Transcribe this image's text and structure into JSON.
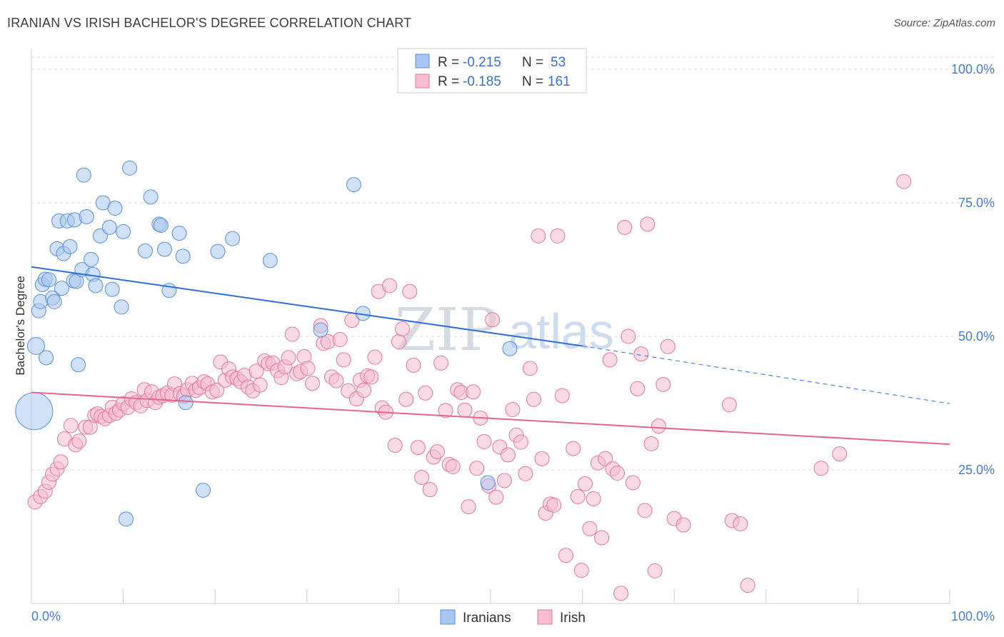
{
  "title": "IRANIAN VS IRISH BACHELOR'S DEGREE CORRELATION CHART",
  "source": "Source: ZipAtlas.com",
  "watermark": {
    "zip": "ZIP",
    "atlas": "atlas"
  },
  "colors": {
    "iranians_fill": "#a9c6f0",
    "iranians_stroke": "#5b8fd8",
    "iranians_line": "#2f6fd6",
    "irish_fill": "#f6bcd0",
    "irish_stroke": "#e3789e",
    "irish_line": "#e2668f",
    "tick_label": "#4a7bd0",
    "grid": "#dcdcdc"
  },
  "legend": {
    "rows": [
      {
        "r_label": "R = ",
        "r_value": "-0.215",
        "n_label": "N = ",
        "n_value": "53"
      },
      {
        "r_label": "R = ",
        "r_value": "-0.185",
        "n_label": "N = ",
        "n_value": "161"
      }
    ]
  },
  "bottom_legend": [
    "Iranians",
    "Irish"
  ],
  "chart_data": {
    "type": "scatter",
    "title": "IRANIAN VS IRISH BACHELOR'S DEGREE CORRELATION CHART",
    "xlabel": "",
    "ylabel": "Bachelor's Degree",
    "xlim": [
      0,
      100
    ],
    "ylim": [
      0,
      100
    ],
    "x_tick_labels": {
      "left": "0.0%",
      "right": "100.0%"
    },
    "y_ticks": [
      {
        "value": 25,
        "label": "25.0%"
      },
      {
        "value": 50,
        "label": "50.0%"
      },
      {
        "value": 75,
        "label": "75.0%"
      },
      {
        "value": 100,
        "label": "100.0%"
      }
    ],
    "grid": true,
    "legend_position": "top-center",
    "series": [
      {
        "name": "Iranians",
        "trend": {
          "x0": 0,
          "y0": 63.0,
          "x1": 60,
          "y1": 48.2,
          "dash_to_x": 100,
          "dash_to_y": 37.4
        },
        "points": [
          [
            0.3,
            36.0,
            26
          ],
          [
            0.5,
            48.2,
            12
          ],
          [
            0.8,
            54.8,
            10
          ],
          [
            1.0,
            56.5,
            10
          ],
          [
            1.2,
            59.7,
            10
          ],
          [
            1.5,
            60.7,
            10
          ],
          [
            1.6,
            46.0,
            10
          ],
          [
            1.9,
            60.6,
            10
          ],
          [
            2.3,
            57.2,
            10
          ],
          [
            2.5,
            56.5,
            10
          ],
          [
            2.8,
            66.4,
            10
          ],
          [
            3.0,
            71.6,
            10
          ],
          [
            3.3,
            59.0,
            10
          ],
          [
            3.5,
            65.5,
            10
          ],
          [
            3.9,
            71.6,
            10
          ],
          [
            4.2,
            66.8,
            10
          ],
          [
            4.6,
            60.4,
            10
          ],
          [
            4.7,
            71.8,
            10
          ],
          [
            4.9,
            60.3,
            10
          ],
          [
            5.1,
            44.7,
            10
          ],
          [
            5.5,
            62.5,
            10
          ],
          [
            5.7,
            80.2,
            10
          ],
          [
            6.0,
            72.4,
            10
          ],
          [
            6.5,
            64.4,
            10
          ],
          [
            6.7,
            61.6,
            10
          ],
          [
            7.0,
            59.5,
            10
          ],
          [
            7.5,
            68.8,
            10
          ],
          [
            7.8,
            75.0,
            10
          ],
          [
            8.5,
            70.4,
            10
          ],
          [
            8.8,
            58.8,
            10
          ],
          [
            9.1,
            74.0,
            10
          ],
          [
            9.8,
            55.5,
            10
          ],
          [
            10.0,
            69.6,
            10
          ],
          [
            10.3,
            15.8,
            10
          ],
          [
            10.7,
            81.5,
            10
          ],
          [
            12.4,
            66.0,
            10
          ],
          [
            13.0,
            76.1,
            10
          ],
          [
            13.9,
            71.0,
            10
          ],
          [
            14.1,
            70.8,
            10
          ],
          [
            14.5,
            66.3,
            10
          ],
          [
            15.0,
            58.6,
            10
          ],
          [
            16.1,
            69.3,
            10
          ],
          [
            16.5,
            65.0,
            10
          ],
          [
            16.8,
            37.6,
            10
          ],
          [
            18.7,
            21.2,
            10
          ],
          [
            20.3,
            65.9,
            10
          ],
          [
            21.9,
            68.3,
            10
          ],
          [
            26.0,
            64.2,
            10
          ],
          [
            31.5,
            51.2,
            10
          ],
          [
            35.1,
            78.4,
            10
          ],
          [
            36.1,
            54.3,
            10
          ],
          [
            49.7,
            22.6,
            10
          ],
          [
            52.1,
            47.7,
            10
          ]
        ]
      },
      {
        "name": "Irish",
        "trend": {
          "x0": 0,
          "y0": 39.5,
          "x1": 100,
          "y1": 29.8
        },
        "points": [
          [
            0.4,
            19.0,
            10
          ],
          [
            1.0,
            20.0,
            10
          ],
          [
            1.5,
            21.0,
            10
          ],
          [
            1.9,
            22.7,
            10
          ],
          [
            2.3,
            24.2,
            10
          ],
          [
            2.8,
            25.2,
            10
          ],
          [
            3.2,
            26.5,
            10
          ],
          [
            3.6,
            30.8,
            10
          ],
          [
            4.3,
            33.3,
            10
          ],
          [
            4.8,
            29.7,
            10
          ],
          [
            5.2,
            30.4,
            10
          ],
          [
            5.9,
            33.0,
            10
          ],
          [
            6.4,
            33.0,
            10
          ],
          [
            6.9,
            35.2,
            10
          ],
          [
            7.2,
            35.5,
            10
          ],
          [
            7.6,
            35.0,
            10
          ],
          [
            8.0,
            34.6,
            10
          ],
          [
            8.5,
            35.2,
            10
          ],
          [
            8.8,
            36.7,
            10
          ],
          [
            9.2,
            35.6,
            10
          ],
          [
            9.6,
            36.2,
            10
          ],
          [
            10.0,
            37.4,
            10
          ],
          [
            10.5,
            36.7,
            10
          ],
          [
            10.9,
            38.3,
            10
          ],
          [
            11.4,
            37.6,
            10
          ],
          [
            11.9,
            37.0,
            10
          ],
          [
            12.3,
            40.0,
            10
          ],
          [
            12.6,
            38.0,
            10
          ],
          [
            13.1,
            39.6,
            10
          ],
          [
            13.5,
            37.6,
            10
          ],
          [
            13.9,
            38.6,
            10
          ],
          [
            14.3,
            38.9,
            10
          ],
          [
            14.8,
            39.4,
            10
          ],
          [
            15.3,
            39.0,
            10
          ],
          [
            15.6,
            41.1,
            10
          ],
          [
            16.2,
            39.3,
            10
          ],
          [
            16.6,
            38.8,
            10
          ],
          [
            17.0,
            40.0,
            10
          ],
          [
            17.5,
            41.2,
            10
          ],
          [
            17.9,
            39.9,
            10
          ],
          [
            18.3,
            40.4,
            10
          ],
          [
            18.8,
            41.5,
            10
          ],
          [
            19.2,
            41.1,
            10
          ],
          [
            19.7,
            39.6,
            10
          ],
          [
            20.2,
            39.9,
            10
          ],
          [
            20.6,
            45.2,
            10
          ],
          [
            21.1,
            41.8,
            10
          ],
          [
            21.5,
            43.9,
            10
          ],
          [
            21.9,
            42.4,
            10
          ],
          [
            22.4,
            42.1,
            10
          ],
          [
            22.8,
            41.5,
            10
          ],
          [
            23.2,
            42.7,
            10
          ],
          [
            23.6,
            40.5,
            10
          ],
          [
            24.1,
            39.8,
            10
          ],
          [
            24.5,
            43.5,
            10
          ],
          [
            24.9,
            40.9,
            10
          ],
          [
            25.4,
            45.4,
            10
          ],
          [
            25.8,
            44.9,
            10
          ],
          [
            26.3,
            45.0,
            10
          ],
          [
            26.8,
            43.6,
            10
          ],
          [
            27.2,
            42.3,
            10
          ],
          [
            27.6,
            44.3,
            10
          ],
          [
            28.0,
            46.0,
            10
          ],
          [
            28.4,
            50.4,
            10
          ],
          [
            28.9,
            43.0,
            10
          ],
          [
            29.3,
            43.4,
            10
          ],
          [
            29.7,
            46.2,
            10
          ],
          [
            30.1,
            44.0,
            10
          ],
          [
            30.6,
            41.2,
            10
          ],
          [
            31.5,
            52.0,
            10
          ],
          [
            31.8,
            48.7,
            10
          ],
          [
            32.3,
            49.0,
            10
          ],
          [
            32.7,
            42.4,
            10
          ],
          [
            33.2,
            41.7,
            10
          ],
          [
            33.6,
            49.4,
            10
          ],
          [
            34.0,
            45.6,
            10
          ],
          [
            34.5,
            39.8,
            10
          ],
          [
            34.9,
            53.0,
            10
          ],
          [
            35.4,
            38.3,
            10
          ],
          [
            35.8,
            41.8,
            10
          ],
          [
            36.2,
            39.9,
            10
          ],
          [
            36.6,
            42.6,
            10
          ],
          [
            37.0,
            42.4,
            10
          ],
          [
            37.4,
            46.1,
            10
          ],
          [
            37.8,
            58.4,
            10
          ],
          [
            38.2,
            36.6,
            10
          ],
          [
            38.6,
            35.8,
            10
          ],
          [
            39.0,
            59.5,
            10
          ],
          [
            39.6,
            29.6,
            10
          ],
          [
            40.0,
            49.0,
            10
          ],
          [
            40.4,
            51.4,
            10
          ],
          [
            40.8,
            38.2,
            10
          ],
          [
            41.2,
            58.4,
            10
          ],
          [
            41.6,
            44.6,
            10
          ],
          [
            42.1,
            29.2,
            10
          ],
          [
            42.5,
            23.6,
            10
          ],
          [
            42.9,
            39.4,
            10
          ],
          [
            43.4,
            21.3,
            10
          ],
          [
            43.8,
            27.4,
            10
          ],
          [
            44.2,
            28.4,
            10
          ],
          [
            44.6,
            45.0,
            10
          ],
          [
            45.1,
            36.1,
            10
          ],
          [
            45.5,
            26.0,
            10
          ],
          [
            45.9,
            25.6,
            10
          ],
          [
            46.4,
            40.0,
            10
          ],
          [
            46.8,
            39.5,
            10
          ],
          [
            47.2,
            36.2,
            10
          ],
          [
            47.6,
            18.1,
            10
          ],
          [
            48.1,
            39.6,
            10
          ],
          [
            48.5,
            25.3,
            10
          ],
          [
            48.9,
            34.7,
            10
          ],
          [
            49.3,
            30.3,
            10
          ],
          [
            49.8,
            22.0,
            10
          ],
          [
            50.2,
            53.1,
            10
          ],
          [
            50.6,
            19.9,
            10
          ],
          [
            51.0,
            29.3,
            10
          ],
          [
            51.5,
            23.0,
            10
          ],
          [
            51.9,
            27.8,
            10
          ],
          [
            52.4,
            36.3,
            10
          ],
          [
            52.8,
            31.5,
            10
          ],
          [
            53.3,
            30.2,
            10
          ],
          [
            53.8,
            24.3,
            10
          ],
          [
            54.3,
            44.0,
            10
          ],
          [
            54.7,
            38.2,
            10
          ],
          [
            55.2,
            68.8,
            10
          ],
          [
            55.6,
            27.1,
            10
          ],
          [
            56.0,
            16.9,
            10
          ],
          [
            56.5,
            18.6,
            10
          ],
          [
            56.9,
            18.4,
            10
          ],
          [
            57.3,
            68.8,
            10
          ],
          [
            57.8,
            38.9,
            10
          ],
          [
            58.2,
            9.0,
            10
          ],
          [
            59.0,
            29.0,
            10
          ],
          [
            59.5,
            20.0,
            10
          ],
          [
            59.9,
            6.2,
            10
          ],
          [
            60.3,
            22.4,
            10
          ],
          [
            60.8,
            14.0,
            10
          ],
          [
            61.2,
            19.6,
            10
          ],
          [
            61.7,
            26.3,
            10
          ],
          [
            62.1,
            12.3,
            10
          ],
          [
            62.5,
            27.1,
            10
          ],
          [
            63.0,
            45.6,
            10
          ],
          [
            63.3,
            25.2,
            10
          ],
          [
            63.8,
            24.4,
            10
          ],
          [
            64.2,
            1.9,
            10
          ],
          [
            64.6,
            70.4,
            10
          ],
          [
            65.0,
            50.0,
            10
          ],
          [
            65.5,
            22.6,
            10
          ],
          [
            66.0,
            40.2,
            10
          ],
          [
            66.4,
            46.7,
            10
          ],
          [
            66.8,
            17.4,
            10
          ],
          [
            67.1,
            71.0,
            10
          ],
          [
            67.5,
            29.9,
            10
          ],
          [
            67.9,
            6.1,
            10
          ],
          [
            68.3,
            33.2,
            10
          ],
          [
            68.8,
            41.0,
            10
          ],
          [
            69.3,
            48.1,
            10
          ],
          [
            70.0,
            15.9,
            10
          ],
          [
            71.0,
            14.7,
            10
          ],
          [
            76.0,
            37.2,
            10
          ],
          [
            76.3,
            15.5,
            10
          ],
          [
            77.2,
            14.9,
            10
          ],
          [
            78.0,
            3.4,
            10
          ],
          [
            86.0,
            25.3,
            10
          ],
          [
            88.0,
            28.0,
            10
          ],
          [
            95.0,
            79.0,
            10
          ]
        ]
      }
    ]
  }
}
